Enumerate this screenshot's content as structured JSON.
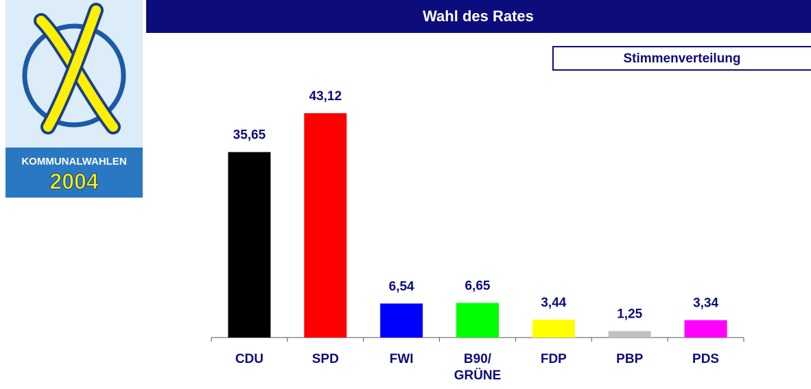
{
  "logo": {
    "caption": "KOMMUNALWAHLEN",
    "year": "2004"
  },
  "chart_data": {
    "type": "bar",
    "title": "Wahl des Rates",
    "subtitle": "Stimmenverteilung",
    "categories": [
      "CDU",
      "SPD",
      "FWI",
      "B90/ GRÜNE",
      "FDP",
      "PBP",
      "PDS"
    ],
    "values": [
      35.65,
      43.12,
      6.54,
      6.65,
      3.44,
      1.25,
      3.34
    ],
    "value_labels": [
      "35,65",
      "43,12",
      "6,54",
      "6,65",
      "3,44",
      "1,25",
      "3,34"
    ],
    "colors": [
      "#000000",
      "#ff0000",
      "#0000ff",
      "#00ff00",
      "#ffff00",
      "#c0c0c0",
      "#ff00ff"
    ]
  }
}
